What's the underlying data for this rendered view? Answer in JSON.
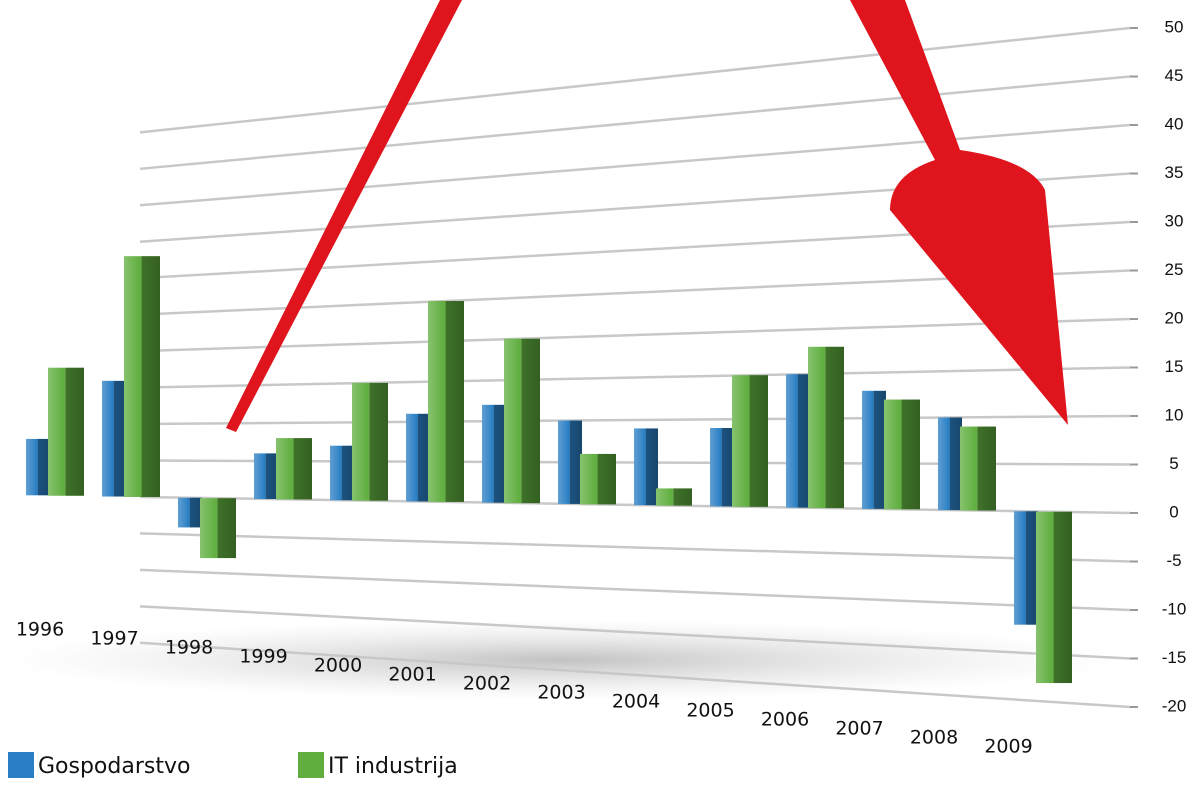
{
  "chart_data": {
    "type": "bar",
    "categories": [
      "1996",
      "1997",
      "1998",
      "1999",
      "2000",
      "2001",
      "2002",
      "2003",
      "2004",
      "2005",
      "2006",
      "2007",
      "2008",
      "2009"
    ],
    "series": [
      {
        "name": "Gospodarstvo",
        "color": "#2a7fc4",
        "values": [
          8,
          16,
          -4,
          6,
          7,
          11,
          12,
          10,
          9,
          9,
          15,
          13,
          10,
          -12
        ]
      },
      {
        "name": "IT industrija",
        "color": "#5fae3e",
        "values": [
          18,
          33,
          -8,
          8,
          15,
          25,
          20,
          6,
          2,
          15,
          18,
          12,
          9,
          -18
        ]
      }
    ],
    "ylim": [
      -20,
      50
    ],
    "yticks": [
      50,
      45,
      40,
      35,
      30,
      25,
      20,
      15,
      10,
      5,
      0,
      -5,
      -10,
      -15,
      -20
    ],
    "grid": true
  }
}
